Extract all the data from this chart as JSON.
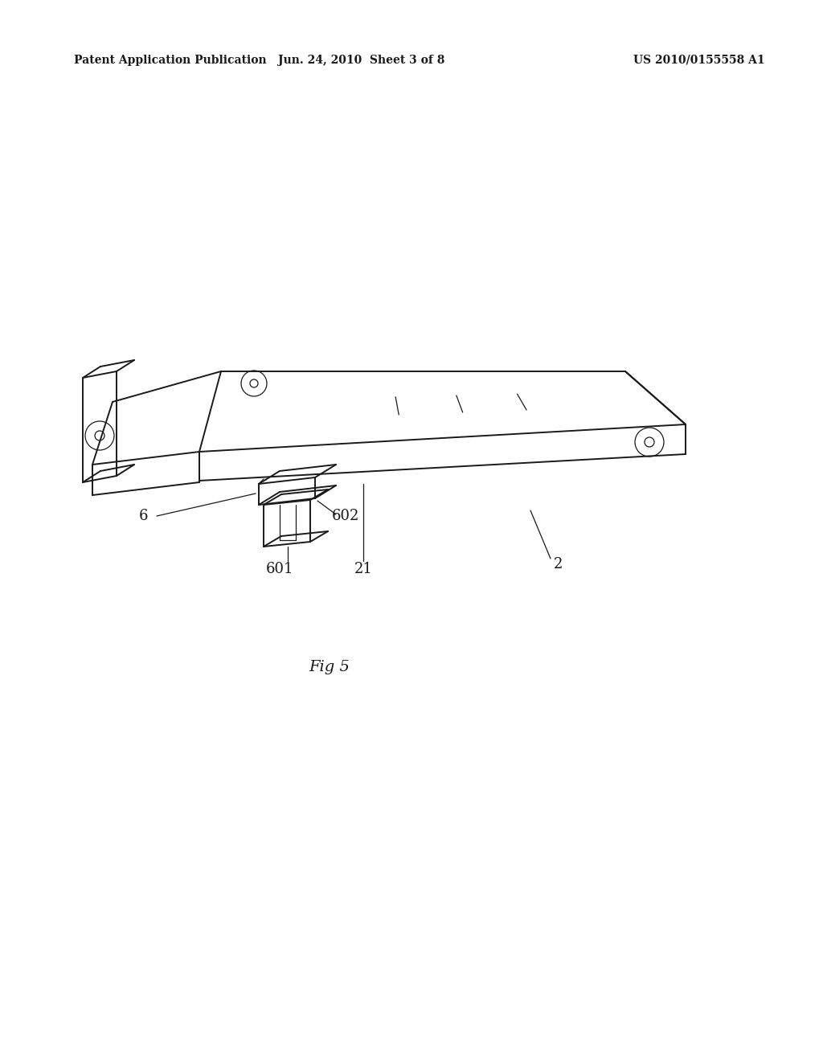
{
  "background_color": "#ffffff",
  "line_color": "#1a1a1a",
  "lw": 1.4,
  "tlw": 0.9,
  "header_left": "Patent Application Publication",
  "header_center": "Jun. 24, 2010  Sheet 3 of 8",
  "header_right": "US 2010/0155558 A1",
  "fig_label": "Fig 5"
}
